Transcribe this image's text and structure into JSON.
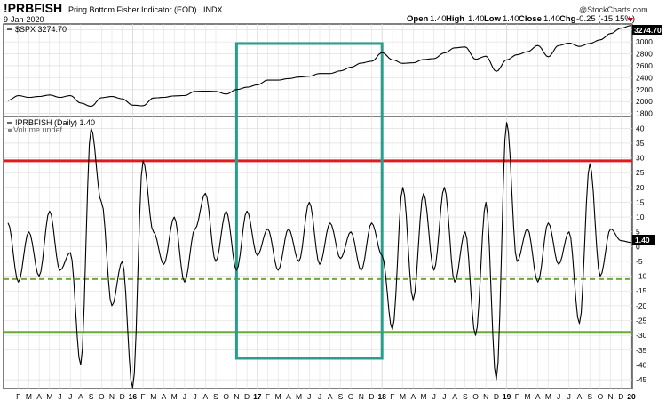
{
  "header": {
    "symbol": "!PRBFISH",
    "description": "Pring Bottom Fisher Indicator (EOD)",
    "exchange": "INDX",
    "date": "9-Jan-2020",
    "watermark": "@StockCharts.com",
    "open_label": "Open",
    "open_value": "1.40",
    "high_label": "High",
    "high_value": "1.40",
    "low_label": "Low",
    "low_value": "1.40",
    "close_label": "Close",
    "close_value": "1.40",
    "chg_label": "Chg",
    "chg_value": "-0.25 (-15.15%)",
    "chg_icon": "down-triangle-icon",
    "chg_color": "#cc0000"
  },
  "top_panel": {
    "legend": "$SPX 3274.70",
    "last_value_badge": "3274.70"
  },
  "bottom_panel": {
    "legend": "!PRBFISH (Daily) 1.40",
    "legend2": "Volume undef",
    "last_value_badge": "1.40"
  },
  "colors": {
    "upper_line": "#e31a1c",
    "lower_line": "#6aaa3a",
    "highlight_box": "#2a9d8f",
    "series": "#000000",
    "grid": "#d9d9d9"
  },
  "chart_data": [
    {
      "type": "line",
      "series_name": "$SPX",
      "y_ticks": [
        1800,
        2000,
        2200,
        2400,
        2600,
        2800,
        3000,
        3200
      ],
      "ylim": [
        1750,
        3300
      ],
      "grid": true,
      "x": [
        "2015-01",
        "2015-02",
        "2015-03",
        "2015-04",
        "2015-05",
        "2015-06",
        "2015-07",
        "2015-08",
        "2015-09",
        "2015-10",
        "2015-11",
        "2015-12",
        "2016-01",
        "2016-02",
        "2016-03",
        "2016-04",
        "2016-05",
        "2016-06",
        "2016-07",
        "2016-08",
        "2016-09",
        "2016-10",
        "2016-11",
        "2016-12",
        "2017-01",
        "2017-02",
        "2017-03",
        "2017-04",
        "2017-05",
        "2017-06",
        "2017-07",
        "2017-08",
        "2017-09",
        "2017-10",
        "2017-11",
        "2017-12",
        "2018-01",
        "2018-02",
        "2018-03",
        "2018-04",
        "2018-05",
        "2018-06",
        "2018-07",
        "2018-08",
        "2018-09",
        "2018-10",
        "2018-11",
        "2018-12",
        "2019-01",
        "2019-02",
        "2019-03",
        "2019-04",
        "2019-05",
        "2019-06",
        "2019-07",
        "2019-08",
        "2019-09",
        "2019-10",
        "2019-11",
        "2019-12",
        "2020-01"
      ],
      "y": [
        2020,
        2100,
        2070,
        2085,
        2110,
        2070,
        2100,
        1975,
        1920,
        2065,
        2085,
        2045,
        1940,
        1930,
        2060,
        2070,
        2095,
        2100,
        2170,
        2175,
        2170,
        2125,
        2200,
        2240,
        2280,
        2360,
        2360,
        2385,
        2410,
        2425,
        2470,
        2470,
        2515,
        2575,
        2645,
        2675,
        2820,
        2700,
        2640,
        2650,
        2705,
        2720,
        2815,
        2900,
        2915,
        2710,
        2760,
        2505,
        2700,
        2785,
        2835,
        2940,
        2750,
        2940,
        2980,
        2925,
        2975,
        3035,
        3140,
        3230,
        3275
      ]
    },
    {
      "type": "line",
      "series_name": "!PRBFISH (Daily)",
      "y_ticks": [
        -45,
        -40,
        -35,
        -30,
        -25,
        -20,
        -15,
        -10,
        -5,
        0,
        5,
        10,
        15,
        20,
        25,
        30,
        35,
        40
      ],
      "ylim": [
        -48,
        44
      ],
      "grid": true,
      "reference_lines": [
        {
          "value": 29,
          "style": "solid",
          "color": "#e31a1c"
        },
        {
          "value": -11,
          "style": "dashed",
          "color": "#6aaa3a"
        },
        {
          "value": -29,
          "style": "solid",
          "color": "#6aaa3a"
        }
      ],
      "highlight_range": {
        "x_start": "2016-11",
        "x_end": "2018-01"
      },
      "x": [
        "2015-01",
        "2015-02",
        "2015-03",
        "2015-04",
        "2015-05",
        "2015-06",
        "2015-07",
        "2015-08",
        "2015-09",
        "2015-10",
        "2015-11",
        "2015-12",
        "2016-01",
        "2016-02",
        "2016-03",
        "2016-04",
        "2016-05",
        "2016-06",
        "2016-07",
        "2016-08",
        "2016-09",
        "2016-10",
        "2016-11",
        "2016-12",
        "2017-01",
        "2017-02",
        "2017-03",
        "2017-04",
        "2017-05",
        "2017-06",
        "2017-07",
        "2017-08",
        "2017-09",
        "2017-10",
        "2017-11",
        "2017-12",
        "2018-01",
        "2018-02",
        "2018-03",
        "2018-04",
        "2018-05",
        "2018-06",
        "2018-07",
        "2018-08",
        "2018-09",
        "2018-10",
        "2018-11",
        "2018-12",
        "2019-01",
        "2019-02",
        "2019-03",
        "2019-04",
        "2019-05",
        "2019-06",
        "2019-07",
        "2019-08",
        "2019-09",
        "2019-10",
        "2019-11",
        "2019-12",
        "2020-01"
      ],
      "y": [
        8,
        -12,
        5,
        -10,
        12,
        -8,
        -2,
        -40,
        40,
        15,
        -20,
        -5,
        -48,
        29,
        5,
        -6,
        10,
        -12,
        6,
        18,
        -5,
        12,
        -8,
        12,
        -3,
        6,
        -8,
        6,
        -5,
        15,
        -6,
        8,
        -4,
        5,
        -8,
        8,
        -3,
        -28,
        20,
        -18,
        18,
        -8,
        20,
        -12,
        5,
        -30,
        15,
        -45,
        42,
        -5,
        6,
        -12,
        8,
        -6,
        5,
        -26,
        28,
        -10,
        6,
        2,
        1.4
      ]
    }
  ],
  "x_axis": {
    "labels": [
      "F",
      "M",
      "A",
      "M",
      "J",
      "J",
      "A",
      "S",
      "O",
      "N",
      "D",
      "16",
      "F",
      "M",
      "A",
      "M",
      "J",
      "J",
      "A",
      "S",
      "O",
      "N",
      "D",
      "17",
      "F",
      "M",
      "A",
      "M",
      "J",
      "J",
      "A",
      "S",
      "O",
      "N",
      "D",
      "18",
      "F",
      "M",
      "A",
      "M",
      "J",
      "J",
      "A",
      "S",
      "O",
      "N",
      "D",
      "19",
      "F",
      "M",
      "A",
      "M",
      "J",
      "J",
      "A",
      "S",
      "O",
      "N",
      "D",
      "20"
    ],
    "year_labels": [
      "16",
      "17",
      "18",
      "19",
      "20"
    ]
  }
}
